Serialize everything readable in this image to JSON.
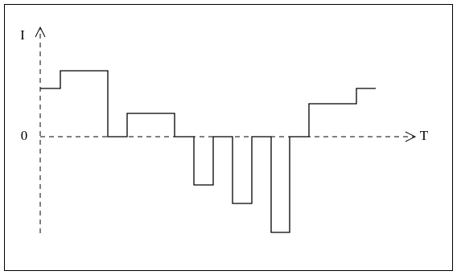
{
  "axes": {
    "y_label": "I",
    "x_label": "T",
    "origin_label": "0"
  }
}
